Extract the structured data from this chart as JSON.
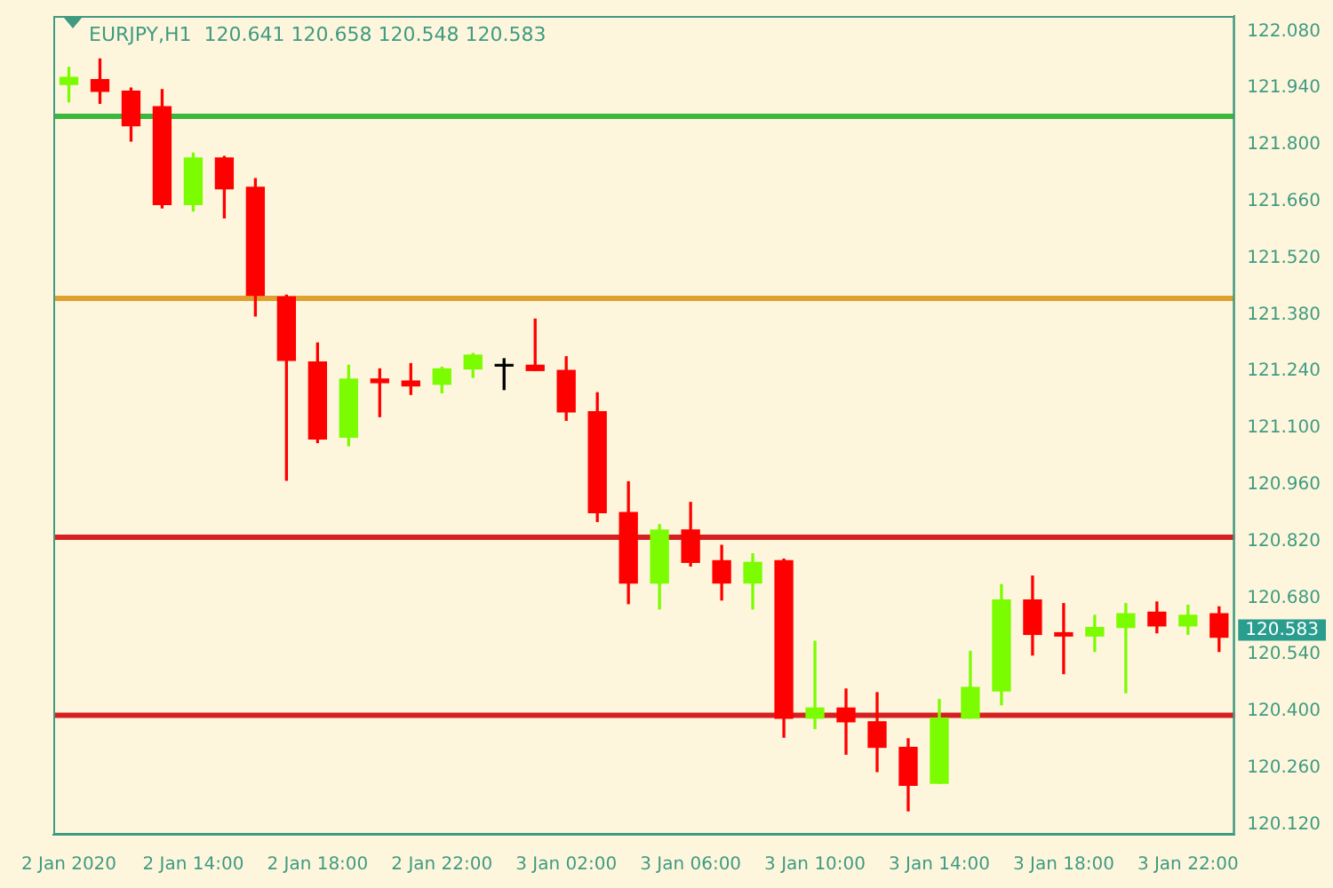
{
  "chart_data": {
    "type": "candlestick",
    "title": "EURJPY,H1  120.641 120.658 120.548 120.583",
    "categories": [
      "2 Jan 2020",
      null,
      null,
      null,
      "2 Jan 14:00",
      null,
      null,
      null,
      "2 Jan 18:00",
      null,
      null,
      null,
      "2 Jan 22:00",
      null,
      null,
      null,
      "3 Jan 02:00",
      null,
      null,
      null,
      "3 Jan 06:00",
      null,
      null,
      null,
      "3 Jan 10:00",
      null,
      null,
      null,
      "3 Jan 14:00",
      null,
      null,
      null,
      "3 Jan 18:00",
      null,
      null,
      null,
      "3 Jan 22:00",
      null
    ],
    "ohlc": [
      [
        121.949,
        121.991,
        121.906,
        121.966
      ],
      [
        121.961,
        122.012,
        121.902,
        121.932
      ],
      [
        121.932,
        121.94,
        121.809,
        121.847
      ],
      [
        121.894,
        121.936,
        121.644,
        121.652
      ],
      [
        121.652,
        121.779,
        121.636,
        121.767
      ],
      [
        121.767,
        121.771,
        121.619,
        121.691
      ],
      [
        121.695,
        121.716,
        121.377,
        121.428
      ],
      [
        121.424,
        121.428,
        120.971,
        121.267
      ],
      [
        121.263,
        121.31,
        121.064,
        121.073
      ],
      [
        121.077,
        121.255,
        121.056,
        121.221
      ],
      [
        121.221,
        121.246,
        121.128,
        121.212
      ],
      [
        121.216,
        121.259,
        121.183,
        121.204
      ],
      [
        121.208,
        121.25,
        121.187,
        121.246
      ],
      [
        121.246,
        121.284,
        121.225,
        121.28
      ],
      [
        121.257,
        121.271,
        121.195,
        121.253
      ],
      [
        121.255,
        121.369,
        121.242,
        121.242
      ],
      [
        121.242,
        121.276,
        121.119,
        121.14
      ],
      [
        121.14,
        121.187,
        120.869,
        120.891
      ],
      [
        120.891,
        120.967,
        120.666,
        120.717
      ],
      [
        120.717,
        120.861,
        120.653,
        120.848
      ],
      [
        120.848,
        120.916,
        120.759,
        120.768
      ],
      [
        120.772,
        120.81,
        120.675,
        120.717
      ],
      [
        120.717,
        120.789,
        120.653,
        120.768
      ],
      [
        120.772,
        120.776,
        120.336,
        120.383
      ],
      [
        120.383,
        120.573,
        120.357,
        120.408
      ],
      [
        120.408,
        120.455,
        120.294,
        120.374
      ],
      [
        120.374,
        120.446,
        120.251,
        120.311
      ],
      [
        120.311,
        120.332,
        120.154,
        120.217
      ],
      [
        120.222,
        120.429,
        120.222,
        120.383
      ],
      [
        120.383,
        120.548,
        120.383,
        120.459
      ],
      [
        120.45,
        120.713,
        120.416,
        120.675
      ],
      [
        120.675,
        120.734,
        120.539,
        120.59
      ],
      [
        120.594,
        120.666,
        120.493,
        120.586
      ],
      [
        120.586,
        120.637,
        120.548,
        120.607
      ],
      [
        120.607,
        120.666,
        120.446,
        120.641
      ],
      [
        120.645,
        120.67,
        120.594,
        120.611
      ],
      [
        120.611,
        120.662,
        120.59,
        120.637
      ],
      [
        120.641,
        120.658,
        120.548,
        120.583
      ]
    ],
    "colors": [
      "#7cfc00",
      "#ff0000",
      "#ff0000",
      "#ff0000",
      "#7cfc00",
      "#ff0000",
      "#ff0000",
      "#ff0000",
      "#ff0000",
      "#7cfc00",
      "#ff0000",
      "#ff0000",
      "#7cfc00",
      "#7cfc00",
      "#000000",
      "#ff0000",
      "#ff0000",
      "#ff0000",
      "#ff0000",
      "#7cfc00",
      "#ff0000",
      "#ff0000",
      "#7cfc00",
      "#ff0000",
      "#7cfc00",
      "#ff0000",
      "#ff0000",
      "#ff0000",
      "#7cfc00",
      "#7cfc00",
      "#7cfc00",
      "#ff0000",
      "#ff0000",
      "#7cfc00",
      "#7cfc00",
      "#ff0000",
      "#7cfc00",
      "#ff0000"
    ],
    "ylim": [
      120.095,
      122.118
    ],
    "yticks": [
      {
        "value": 120.12,
        "label": "120.120"
      },
      {
        "value": 120.26,
        "label": "120.260"
      },
      {
        "value": 120.4,
        "label": "120.400"
      },
      {
        "value": 120.54,
        "label": "120.540"
      },
      {
        "value": 120.68,
        "label": "120.680"
      },
      {
        "value": 120.82,
        "label": "120.820"
      },
      {
        "value": 120.96,
        "label": "120.960"
      },
      {
        "value": 121.1,
        "label": "121.100"
      },
      {
        "value": 121.24,
        "label": "121.240"
      },
      {
        "value": 121.38,
        "label": "121.380"
      },
      {
        "value": 121.52,
        "label": "121.520"
      },
      {
        "value": 121.66,
        "label": "121.660"
      },
      {
        "value": 121.8,
        "label": "121.800"
      },
      {
        "value": 121.94,
        "label": "121.940"
      },
      {
        "value": 122.08,
        "label": "122.080"
      }
    ],
    "ref_lines": [
      {
        "axis": "y",
        "value": 121.87,
        "color": "#3cb93c"
      },
      {
        "axis": "y",
        "value": 121.42,
        "color": "#e0a030"
      },
      {
        "axis": "y",
        "value": 120.83,
        "color": "#d42020"
      },
      {
        "axis": "y",
        "value": 120.39,
        "color": "#d42020"
      }
    ],
    "annotations": [
      "120.583"
    ],
    "grid": false,
    "legend": false
  }
}
